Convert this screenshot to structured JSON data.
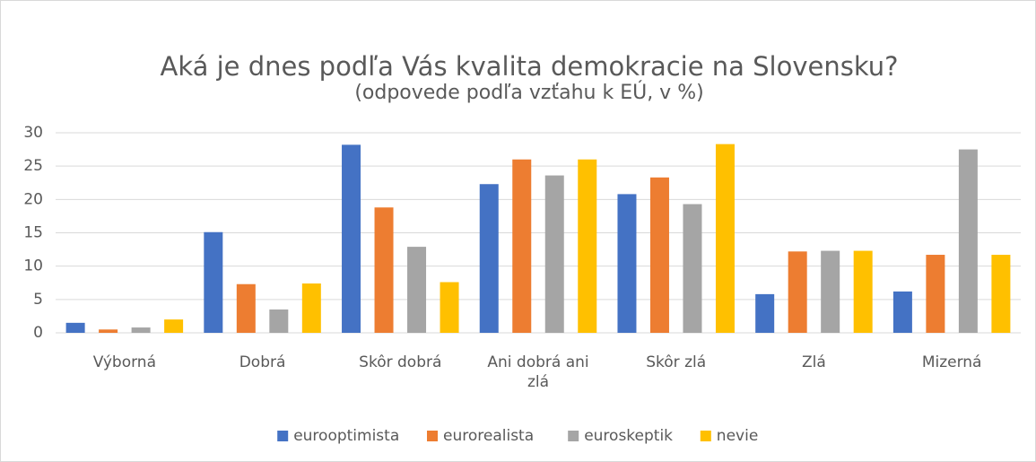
{
  "chart_data": {
    "type": "bar",
    "title": "Aká je dnes podľa Vás kvalita demokracie na Slovensku?",
    "subtitle": "(odpovede podľa vzťahu k EÚ, v %)",
    "categories": [
      "Výborná",
      "Dobrá",
      "Skôr dobrá",
      "Ani dobrá ani zlá",
      "Skôr zlá",
      "Zlá",
      "Mizerná"
    ],
    "series": [
      {
        "name": "eurooptimista",
        "color": "#4472c4",
        "values": [
          1.5,
          15.1,
          28.2,
          22.3,
          20.8,
          5.8,
          6.2
        ]
      },
      {
        "name": "eurorealista",
        "color": "#ed7d31",
        "values": [
          0.5,
          7.3,
          18.8,
          26.0,
          23.3,
          12.2,
          11.7
        ]
      },
      {
        "name": "euroskeptik",
        "color": "#a5a5a5",
        "values": [
          0.8,
          3.5,
          12.9,
          23.6,
          19.3,
          12.3,
          27.5
        ]
      },
      {
        "name": "nevie",
        "color": "#ffc000",
        "values": [
          2.0,
          7.4,
          7.6,
          26.0,
          28.3,
          12.3,
          11.7
        ]
      }
    ],
    "ylim": [
      0,
      30
    ],
    "yticks": [
      0,
      5,
      10,
      15,
      20,
      25,
      30
    ],
    "grid": true,
    "legend": "bottom"
  }
}
